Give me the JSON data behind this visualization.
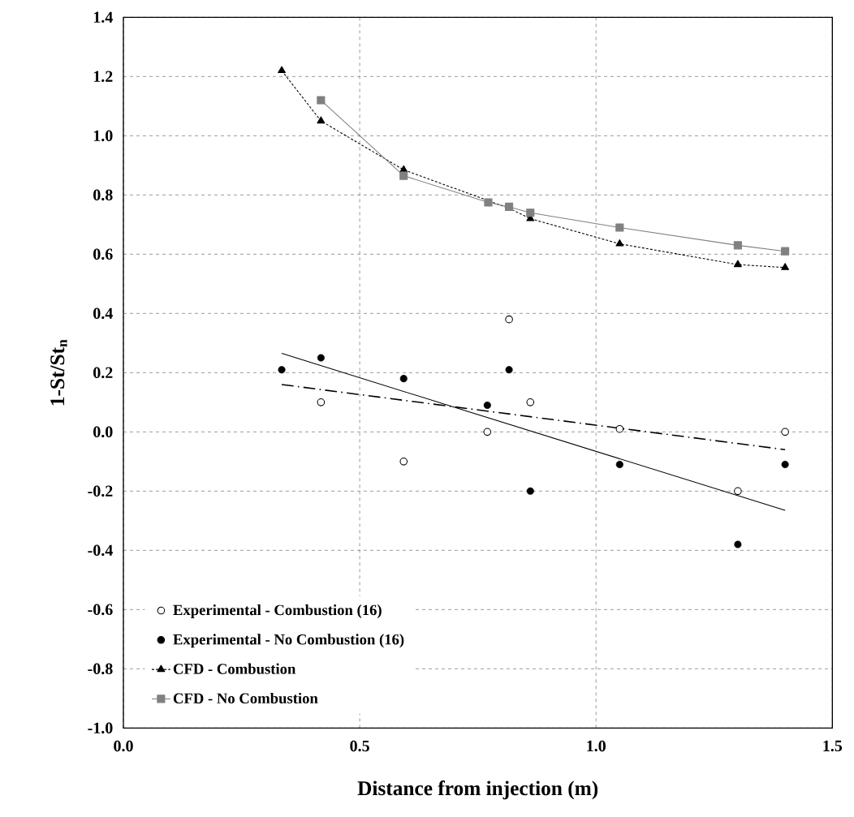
{
  "chart_data": {
    "type": "scatter",
    "xlabel": "Distance from injection (m)",
    "ylabel": "1-St/St$_{n}$",
    "xlim": [
      0,
      1.5
    ],
    "ylim": [
      -1.0,
      1.4
    ],
    "xticks": [
      {
        "value": 0,
        "label": "0.0"
      },
      0.5,
      {
        "value": 1,
        "label": "1.0"
      },
      1.5
    ],
    "yticks": [
      {
        "value": -1,
        "label": "-1.0"
      },
      -0.8,
      -0.6,
      -0.4,
      -0.2,
      {
        "value": 0,
        "label": "0.0"
      },
      0.2,
      0.4,
      0.6,
      0.8,
      {
        "value": 1,
        "label": "1.0"
      },
      1.2,
      1.4
    ],
    "grid": true,
    "legend": "bottom left",
    "series": [
      {
        "name": "Experimental - Combustion  (16)",
        "marker": "circle",
        "color": "#ffffff",
        "x": [
          0.418,
          0.593,
          0.77,
          0.816,
          0.861,
          1.05,
          1.3,
          1.4
        ],
        "values": [
          0.1,
          -0.1,
          0.0,
          0.38,
          0.1,
          0.01,
          -0.2,
          0.0
        ]
      },
      {
        "name": "Experimental - No Combustion   (16)",
        "marker": "circle",
        "color": "#000000",
        "x": [
          0.335,
          0.418,
          0.593,
          0.77,
          0.816,
          0.861,
          1.05,
          1.3,
          1.4
        ],
        "values": [
          0.21,
          0.25,
          0.18,
          0.09,
          0.21,
          -0.2,
          -0.11,
          -0.38,
          -0.11
        ]
      },
      {
        "name": "CFD - Combustion",
        "type": "line",
        "marker": "triangle",
        "line_style": "dotted",
        "color": "#000000",
        "x": [
          0.335,
          0.418,
          0.593,
          0.772,
          0.816,
          0.861,
          1.05,
          1.3,
          1.4
        ],
        "values": [
          1.22,
          1.05,
          0.885,
          null,
          0.755,
          0.72,
          0.635,
          0.565,
          0.555
        ]
      },
      {
        "name": "CFD - No Combustion",
        "type": "line",
        "marker": "square",
        "line_style": "solid",
        "color": "#808080",
        "x": [
          0.418,
          0.593,
          0.772,
          0.816,
          0.861,
          1.05,
          1.3,
          1.4
        ],
        "values": [
          1.12,
          0.865,
          0.775,
          0.76,
          0.74,
          0.69,
          0.63,
          0.61
        ]
      },
      {
        "type": "line",
        "marker": "none",
        "line_style": "solid",
        "color": "#000000",
        "x": [
          0.335,
          1.4
        ],
        "values": [
          0.265,
          -0.265
        ]
      },
      {
        "type": "line",
        "marker": "none",
        "line_style": "dashed",
        "color": "#000000",
        "x": [
          0.335,
          1.4
        ],
        "values": [
          0.16,
          -0.06
        ]
      }
    ]
  }
}
